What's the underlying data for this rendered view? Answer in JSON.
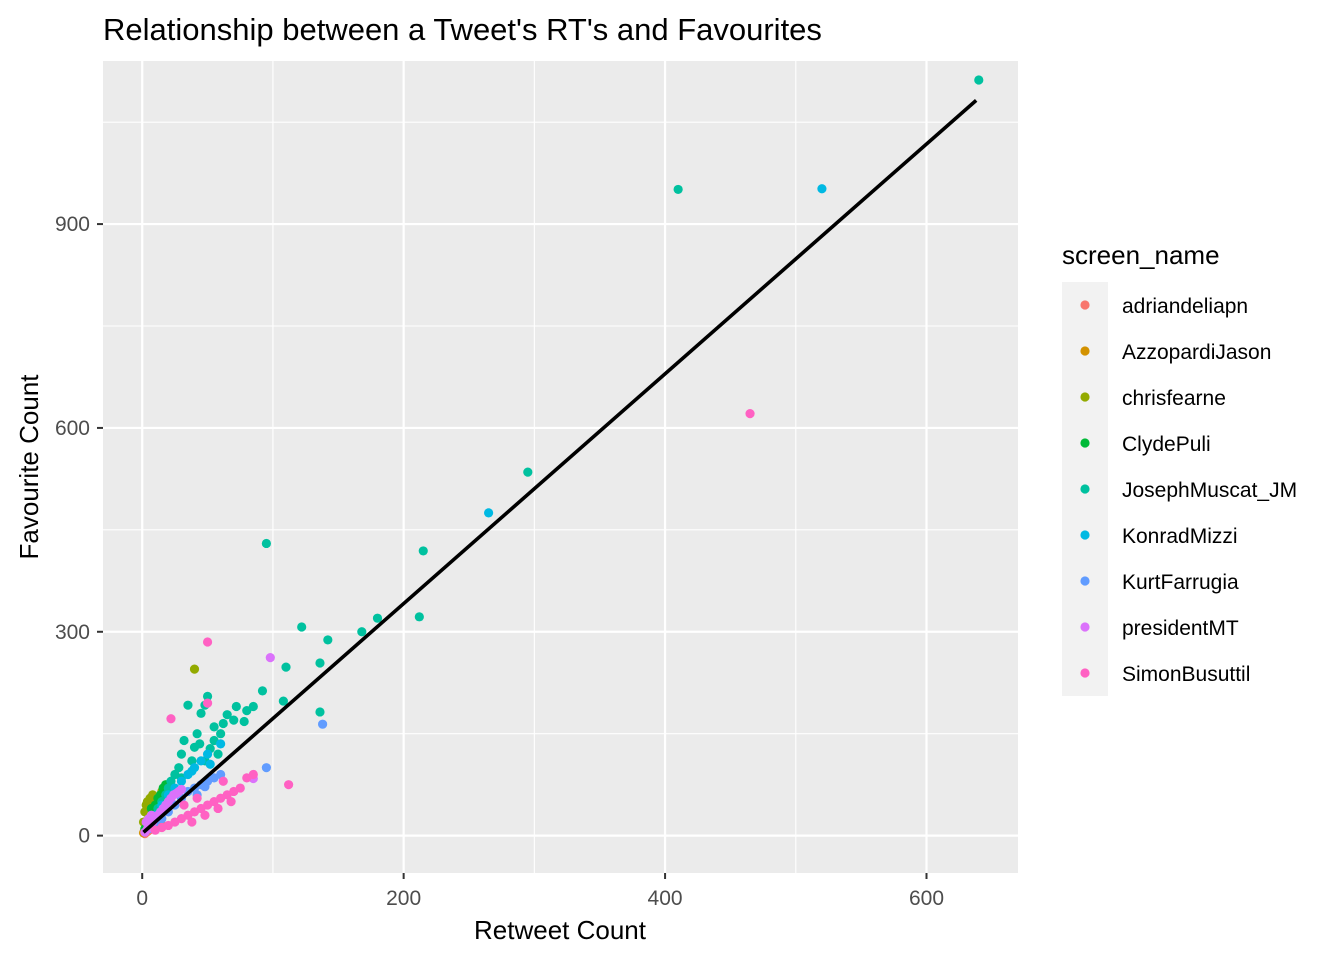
{
  "chart_data": {
    "type": "scatter",
    "title": "Relationship between a Tweet's RT's and Favourites",
    "xlabel": "Retweet Count",
    "ylabel": "Favourite Count",
    "xlim": [
      -30,
      670
    ],
    "ylim": [
      -55,
      1140
    ],
    "x_ticks": [
      0,
      200,
      400,
      600
    ],
    "y_ticks": [
      0,
      300,
      600,
      900
    ],
    "grid": true,
    "legend": {
      "title": "screen_name",
      "position": "right"
    },
    "series": [
      {
        "name": "adriandeliapn",
        "color": "#F8766D",
        "points": [
          [
            2,
            3
          ],
          [
            4,
            6
          ],
          [
            6,
            9
          ],
          [
            8,
            11
          ],
          [
            10,
            14
          ],
          [
            12,
            16
          ],
          [
            5,
            8
          ],
          [
            9,
            10
          ],
          [
            14,
            20
          ],
          [
            3,
            5
          ]
        ]
      },
      {
        "name": "AzzopardiJason",
        "color": "#D39200",
        "points": [
          [
            1,
            4
          ],
          [
            3,
            8
          ],
          [
            5,
            12
          ],
          [
            7,
            15
          ],
          [
            9,
            18
          ],
          [
            2,
            20
          ],
          [
            6,
            22
          ],
          [
            4,
            14
          ]
        ]
      },
      {
        "name": "chrisfearne",
        "color": "#93AA00",
        "points": [
          [
            1,
            20
          ],
          [
            2,
            35
          ],
          [
            3,
            45
          ],
          [
            4,
            50
          ],
          [
            6,
            55
          ],
          [
            8,
            60
          ],
          [
            10,
            40
          ],
          [
            12,
            50
          ],
          [
            15,
            65
          ],
          [
            5,
            30
          ],
          [
            40,
            245
          ]
        ]
      },
      {
        "name": "ClydePuli",
        "color": "#00BA38",
        "points": [
          [
            2,
            10
          ],
          [
            4,
            15
          ],
          [
            6,
            25
          ],
          [
            8,
            35
          ],
          [
            10,
            45
          ],
          [
            12,
            55
          ],
          [
            14,
            60
          ],
          [
            16,
            70
          ],
          [
            18,
            75
          ],
          [
            7,
            40
          ]
        ]
      },
      {
        "name": "JosephMuscat_JM",
        "color": "#00C19F",
        "points": [
          [
            640,
            1112
          ],
          [
            410,
            951
          ],
          [
            295,
            535
          ],
          [
            215,
            419
          ],
          [
            212,
            322
          ],
          [
            180,
            320
          ],
          [
            168,
            300
          ],
          [
            142,
            288
          ],
          [
            136,
            254
          ],
          [
            136,
            182
          ],
          [
            122,
            307
          ],
          [
            110,
            248
          ],
          [
            108,
            198
          ],
          [
            95,
            430
          ],
          [
            92,
            213
          ],
          [
            85,
            190
          ],
          [
            80,
            184
          ],
          [
            78,
            168
          ],
          [
            72,
            190
          ],
          [
            70,
            170
          ],
          [
            65,
            178
          ],
          [
            60,
            150
          ],
          [
            55,
            140
          ],
          [
            50,
            205
          ],
          [
            48,
            192
          ],
          [
            45,
            180
          ],
          [
            42,
            150
          ],
          [
            40,
            130
          ],
          [
            35,
            192
          ],
          [
            32,
            140
          ],
          [
            30,
            120
          ],
          [
            28,
            100
          ],
          [
            25,
            90
          ],
          [
            22,
            80
          ],
          [
            20,
            70
          ],
          [
            18,
            60
          ],
          [
            15,
            50
          ],
          [
            12,
            40
          ],
          [
            10,
            30
          ],
          [
            8,
            25
          ],
          [
            5,
            15
          ],
          [
            55,
            160
          ],
          [
            62,
            165
          ],
          [
            58,
            120
          ],
          [
            48,
            110
          ],
          [
            38,
            110
          ],
          [
            30,
            85
          ],
          [
            44,
            135
          ],
          [
            52,
            128
          ]
        ]
      },
      {
        "name": "KonradMizzi",
        "color": "#00B9E3",
        "points": [
          [
            520,
            952
          ],
          [
            265,
            475
          ],
          [
            60,
            135
          ],
          [
            50,
            120
          ],
          [
            45,
            110
          ],
          [
            40,
            100
          ],
          [
            35,
            90
          ],
          [
            30,
            80
          ],
          [
            25,
            70
          ],
          [
            20,
            60
          ],
          [
            15,
            45
          ],
          [
            10,
            30
          ],
          [
            5,
            15
          ],
          [
            38,
            95
          ],
          [
            52,
            105
          ]
        ]
      },
      {
        "name": "KurtFarrugia",
        "color": "#619CFF",
        "points": [
          [
            138,
            164
          ],
          [
            95,
            100
          ],
          [
            60,
            90
          ],
          [
            55,
            85
          ],
          [
            50,
            80
          ],
          [
            45,
            75
          ],
          [
            40,
            70
          ],
          [
            35,
            65
          ],
          [
            30,
            55
          ],
          [
            25,
            45
          ],
          [
            20,
            35
          ],
          [
            15,
            25
          ],
          [
            10,
            20
          ],
          [
            5,
            10
          ],
          [
            42,
            60
          ],
          [
            48,
            72
          ]
        ]
      },
      {
        "name": "presidentMT",
        "color": "#DB72FB",
        "points": [
          [
            98,
            262
          ],
          [
            85,
            84
          ],
          [
            2,
            5
          ],
          [
            4,
            10
          ],
          [
            6,
            15
          ],
          [
            8,
            20
          ],
          [
            10,
            25
          ],
          [
            12,
            30
          ],
          [
            14,
            35
          ],
          [
            16,
            40
          ],
          [
            18,
            45
          ],
          [
            20,
            50
          ],
          [
            22,
            55
          ],
          [
            24,
            60
          ],
          [
            26,
            62
          ],
          [
            28,
            65
          ],
          [
            30,
            68
          ],
          [
            5,
            25
          ],
          [
            7,
            30
          ],
          [
            3,
            20
          ]
        ]
      },
      {
        "name": "SimonBusuttil",
        "color": "#FF61C3",
        "points": [
          [
            465,
            621
          ],
          [
            112,
            75
          ],
          [
            50,
            285
          ],
          [
            50,
            195
          ],
          [
            22,
            172
          ],
          [
            85,
            90
          ],
          [
            80,
            85
          ],
          [
            75,
            70
          ],
          [
            70,
            65
          ],
          [
            65,
            60
          ],
          [
            60,
            55
          ],
          [
            55,
            50
          ],
          [
            50,
            45
          ],
          [
            45,
            40
          ],
          [
            40,
            35
          ],
          [
            35,
            30
          ],
          [
            30,
            25
          ],
          [
            25,
            20
          ],
          [
            20,
            15
          ],
          [
            15,
            12
          ],
          [
            10,
            8
          ],
          [
            62,
            80
          ],
          [
            68,
            50
          ],
          [
            58,
            40
          ],
          [
            48,
            30
          ],
          [
            38,
            20
          ],
          [
            42,
            55
          ],
          [
            32,
            45
          ]
        ]
      }
    ],
    "trend_line": {
      "color": "#000000",
      "points": [
        [
          1,
          5
        ],
        [
          638,
          1082
        ]
      ]
    }
  }
}
